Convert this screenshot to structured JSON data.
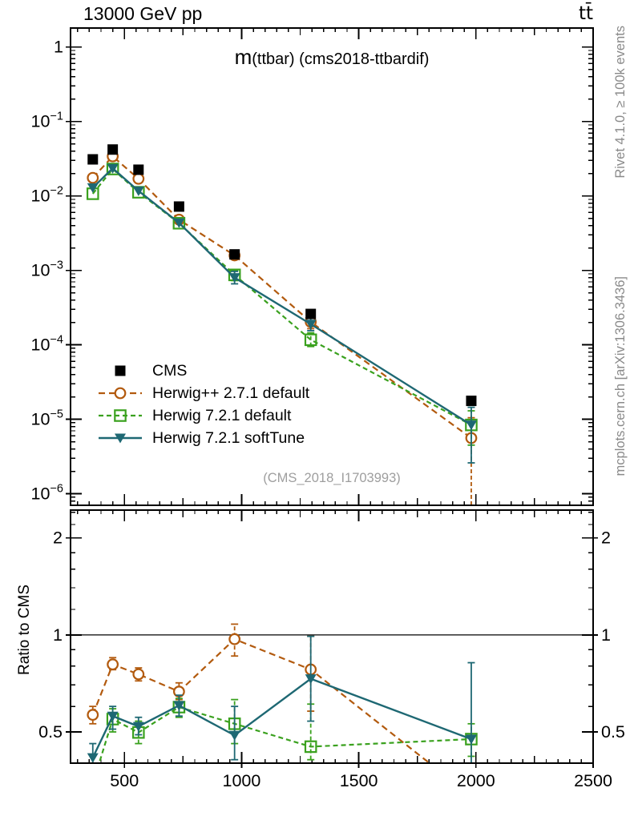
{
  "header": {
    "left": "13000 GeV pp",
    "right": "tt̄"
  },
  "side_notes": {
    "rivet": "Rivet 4.1.0, ≥ 100k events",
    "mcplots": "mcplots.cern.ch [arXiv:1306.3436]"
  },
  "watermark": "(CMS_2018_I1703993)",
  "colors": {
    "axis": "#000000",
    "cms": "#000000",
    "herwigpp": "#b25a0e",
    "herwig7": "#3aa11e",
    "herwig7soft": "#1e6873",
    "note_gray": "#8a8a8a",
    "watermark_gray": "#9e9e9e"
  },
  "chart_data": {
    "type": "line",
    "title_prefix": "m",
    "title_suffix": "(ttbar) (cms2018-ttbardif)",
    "x": [
      365,
      450,
      560,
      733,
      970,
      1295,
      1980
    ],
    "xlim": [
      270,
      2500
    ],
    "x_major_ticks": [
      500,
      1000,
      1500,
      2000,
      2500
    ],
    "x_minor_step": 50,
    "x_medium_step": 250,
    "main_panel": {
      "yscale": "log",
      "ylim": [
        7e-07,
        1.8
      ],
      "ytick_exponents": [
        0,
        -1,
        -2,
        -3,
        -4,
        -5,
        -6
      ]
    },
    "ratio_panel": {
      "yscale": "log",
      "ylim": [
        0.4,
        2.44
      ],
      "yticks": [
        0.5,
        1,
        2
      ],
      "ytick_labels": [
        "0.5",
        "1",
        "2"
      ],
      "minor_ticks": [
        0.4,
        0.6,
        0.7,
        0.8,
        0.9,
        1.2,
        1.4,
        1.6,
        1.8,
        2.2,
        2.4
      ],
      "ylabel": "Ratio to CMS",
      "reference_line": 1
    },
    "series": [
      {
        "label": "CMS",
        "color_key": "cms",
        "marker": "filled-square",
        "line": "none",
        "in_ratio": false,
        "y": [
          0.031,
          0.042,
          0.0225,
          0.0072,
          0.00164,
          0.00026,
          1.77e-05
        ],
        "yerr": [
          null,
          null,
          null,
          null,
          null,
          null,
          null
        ]
      },
      {
        "label": "Herwig++ 2.7.1 default",
        "color_key": "herwigpp",
        "marker": "open-circle",
        "line": "dashed",
        "in_ratio": true,
        "y": [
          0.0175,
          0.034,
          0.017,
          0.0048,
          0.00159,
          0.000203,
          5.6e-06
        ],
        "yerr": [
          null,
          null,
          null,
          null,
          [
            0.00145,
            0.00175
          ],
          [
            0.000165,
            0.00025
          ],
          [
            7e-07,
            1.05e-05
          ]
        ],
        "ratio": [
          0.565,
          0.81,
          0.755,
          0.667,
          0.97,
          0.781,
          0.316
        ],
        "ratio_err": [
          [
            0.53,
            0.6
          ],
          [
            0.78,
            0.85
          ],
          [
            0.72,
            0.79
          ],
          [
            0.63,
            0.71
          ],
          [
            0.86,
            1.08
          ],
          [
            0.58,
            0.99
          ],
          null
        ]
      },
      {
        "label": "Herwig 7.2.1 default",
        "color_key": "herwig7",
        "marker": "open-square",
        "line": "dashed",
        "in_ratio": true,
        "y": [
          0.0107,
          0.023,
          0.0112,
          0.0043,
          0.00087,
          0.000117,
          8.4e-06
        ],
        "yerr": [
          null,
          null,
          null,
          null,
          [
            0.00073,
            0.001
          ],
          [
            9.5e-05,
            0.000145
          ],
          [
            4.5e-06,
            1.3e-05
          ]
        ],
        "ratio": [
          0.345,
          0.548,
          0.498,
          0.597,
          0.53,
          0.45,
          0.475
        ],
        "ratio_err": [
          null,
          [
            0.5,
            0.59
          ],
          [
            0.46,
            0.54
          ],
          [
            0.555,
            0.635
          ],
          [
            0.46,
            0.63
          ],
          [
            0.41,
            0.61
          ],
          [
            0.42,
            0.53
          ]
        ]
      },
      {
        "label": "Herwig 7.2.1 softTune",
        "color_key": "herwig7soft",
        "marker": "filled-triangle-down",
        "line": "solid",
        "in_ratio": true,
        "y": [
          0.0129,
          0.0235,
          0.0117,
          0.00435,
          0.0008,
          0.00019,
          8.4e-06
        ],
        "yerr": [
          null,
          null,
          null,
          null,
          [
            0.00066,
            0.00097
          ],
          [
            0.000155,
            0.000235
          ],
          [
            2.6e-06,
            1.45e-05
          ]
        ],
        "ratio": [
          0.416,
          0.56,
          0.52,
          0.604,
          0.488,
          0.731,
          0.475
        ],
        "ratio_err": [
          [
            0.37,
            0.46
          ],
          [
            0.51,
            0.6
          ],
          [
            0.49,
            0.555
          ],
          [
            0.56,
            0.65
          ],
          [
            0.41,
            0.6
          ],
          [
            0.54,
            0.99
          ],
          [
            0.4,
            0.82
          ]
        ]
      }
    ]
  }
}
